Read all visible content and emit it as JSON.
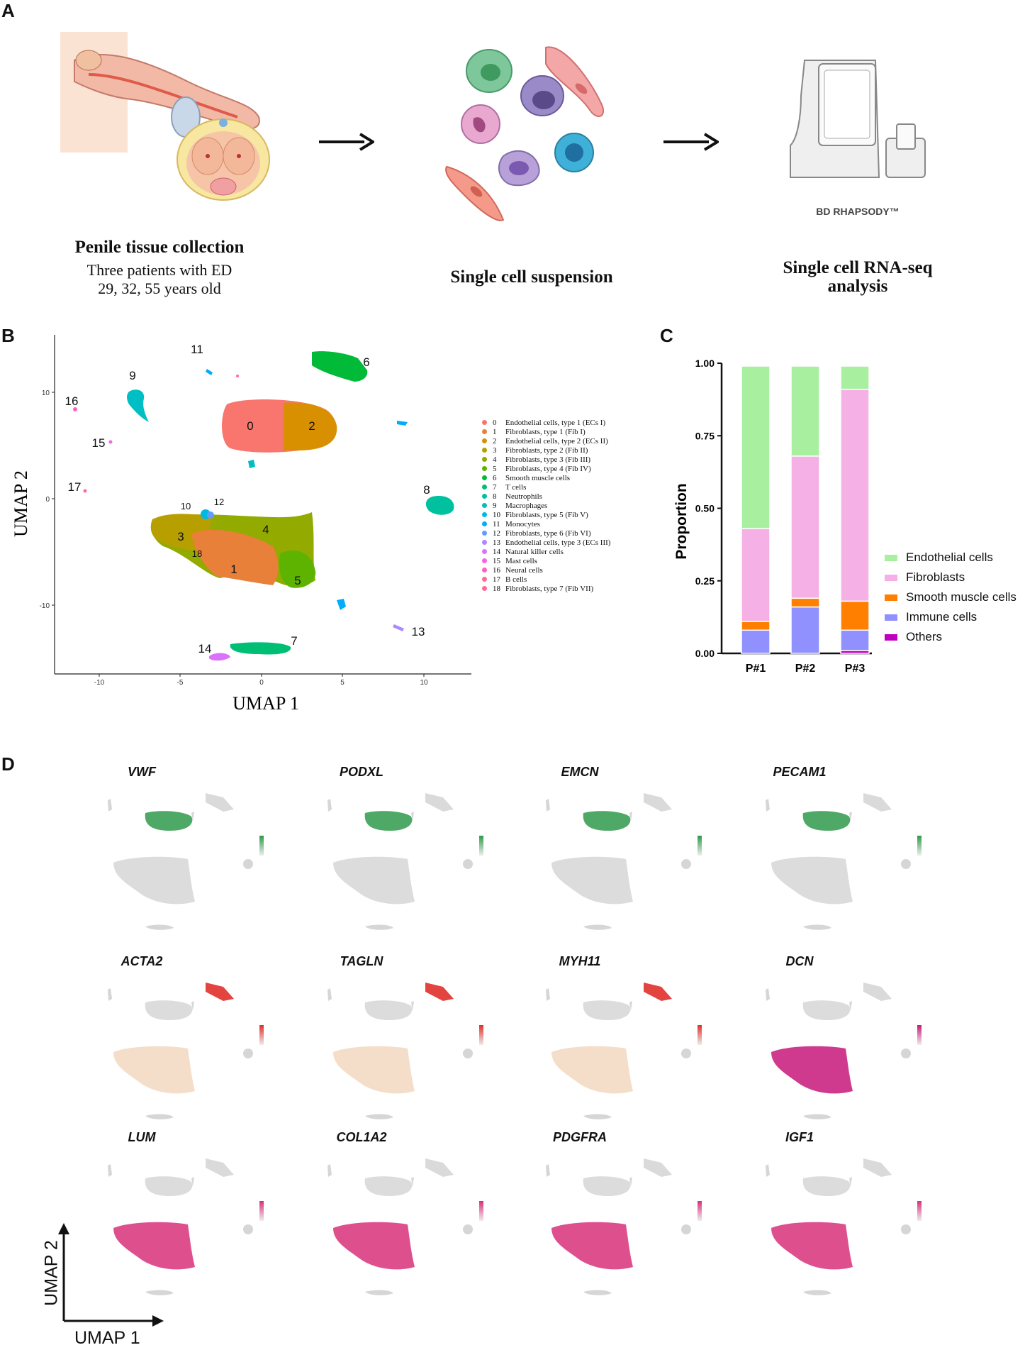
{
  "panels": {
    "a": "A",
    "b": "B",
    "c": "C",
    "d": "D"
  },
  "panel_a": {
    "tissue_title": "Penile tissue collection",
    "tissue_sub1": "Three patients with ED",
    "tissue_sub2": "29, 32, 55 years old",
    "suspension_title": "Single cell suspension",
    "analysis_title_1": "Single cell RNA-seq",
    "analysis_title_2": "analysis",
    "device_brand": "BD RHAPSODY™"
  },
  "umap_b": {
    "xlabel": "UMAP 1",
    "ylabel": "UMAP 2",
    "x_ticks": [
      "-10",
      "-5",
      "0",
      "5",
      "10"
    ],
    "y_ticks": [
      "10",
      "0",
      "-10"
    ],
    "clusters": [
      {
        "id": "0",
        "label": "Endothelial cells, type 1 (ECs I)",
        "color": "#f8766d"
      },
      {
        "id": "1",
        "label": "Fibroblasts, type 1 (Fib I)",
        "color": "#e8803a"
      },
      {
        "id": "2",
        "label": "Endothelial cells, type 2 (ECs II)",
        "color": "#d89000"
      },
      {
        "id": "3",
        "label": "Fibroblasts, type 2 (Fib II)",
        "color": "#b79f00"
      },
      {
        "id": "4",
        "label": "Fibroblasts, type 3 (Fib III)",
        "color": "#93aa00"
      },
      {
        "id": "5",
        "label": "Fibroblasts, type 4 (Fib IV)",
        "color": "#5eb300"
      },
      {
        "id": "6",
        "label": "Smooth muscle cells",
        "color": "#00ba38"
      },
      {
        "id": "7",
        "label": "T cells",
        "color": "#00bf74"
      },
      {
        "id": "8",
        "label": "Neutrophils",
        "color": "#00c19f"
      },
      {
        "id": "9",
        "label": "Macrophages",
        "color": "#00bfc4"
      },
      {
        "id": "10",
        "label": "Fibroblasts, type 5 (Fib V)",
        "color": "#00b9e3"
      },
      {
        "id": "11",
        "label": "Monocytes",
        "color": "#00adfa"
      },
      {
        "id": "12",
        "label": "Fibroblasts, type 6 (Fib VI)",
        "color": "#619cff"
      },
      {
        "id": "13",
        "label": "Endothelial cells, type 3 (ECs III)",
        "color": "#ae87ff"
      },
      {
        "id": "14",
        "label": "Natural killer cells",
        "color": "#db72fb"
      },
      {
        "id": "15",
        "label": "Mast cells",
        "color": "#f564e3"
      },
      {
        "id": "16",
        "label": "Neural cells",
        "color": "#ff61c3"
      },
      {
        "id": "17",
        "label": "B cells",
        "color": "#ff6c91"
      },
      {
        "id": "18",
        "label": "Fibroblasts, type 7 (Fib VII)",
        "color": "#ff6a98"
      }
    ]
  },
  "chart_data": {
    "type": "bar",
    "stacked": true,
    "ylabel": "Proportion",
    "categories": [
      "P#1",
      "P#2",
      "P#3"
    ],
    "y_ticks": [
      "0.00",
      "0.25",
      "0.50",
      "0.75",
      "1.00"
    ],
    "ylim": [
      0,
      1
    ],
    "series": [
      {
        "name": "Others",
        "color": "#c000c0",
        "values": [
          0.0,
          0.0,
          0.01
        ]
      },
      {
        "name": "Immune cells",
        "color": "#9090ff",
        "values": [
          0.08,
          0.16,
          0.07
        ]
      },
      {
        "name": "Smooth muscle cells",
        "color": "#ff8000",
        "values": [
          0.03,
          0.03,
          0.1
        ]
      },
      {
        "name": "Fibroblasts",
        "color": "#f5b0e6",
        "values": [
          0.32,
          0.49,
          0.73
        ]
      },
      {
        "name": "Endothelial cells",
        "color": "#a8f0a0",
        "values": [
          0.56,
          0.31,
          0.08
        ]
      }
    ],
    "legend_order": [
      "Endothelial cells",
      "Fibroblasts",
      "Smooth muscle cells",
      "Immune cells",
      "Others"
    ]
  },
  "panel_d": {
    "genes_row1": [
      "VWF",
      "PODXL",
      "EMCN",
      "PECAM1"
    ],
    "genes_row2": [
      "ACTA2",
      "TAGLN",
      "MYH11",
      "DCN"
    ],
    "genes_row3": [
      "LUM",
      "COL1A2",
      "PDGFRA",
      "IGF1"
    ],
    "axis_x": "UMAP 1",
    "axis_y": "UMAP 2"
  }
}
